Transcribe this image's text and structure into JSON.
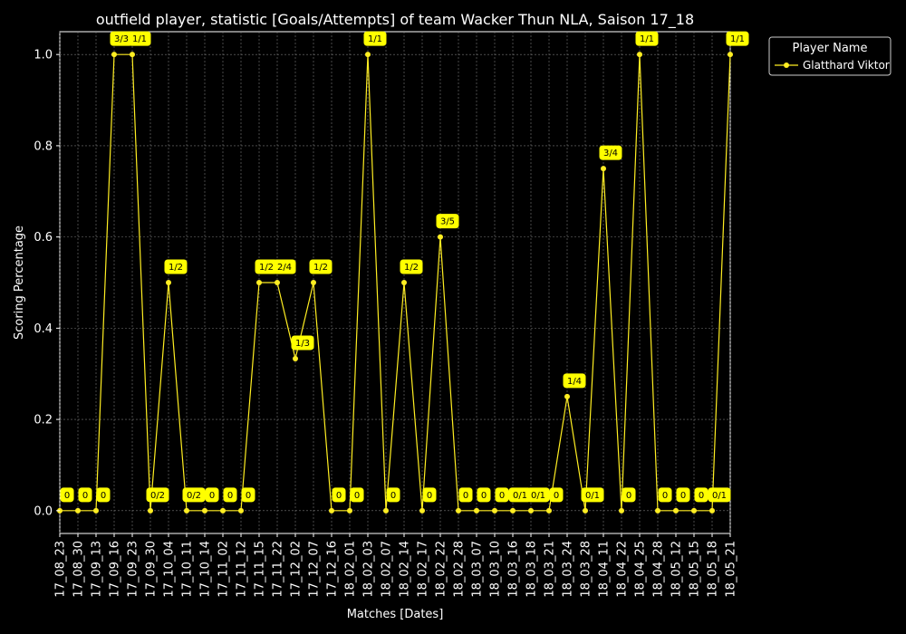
{
  "chart_data": {
    "type": "line",
    "title": "outfield player, statistic [Goals/Attempts] of team Wacker Thun NLA, Saison 17_18",
    "xlabel": "Matches [Dates]",
    "ylabel": "Scoring Percentage",
    "ylim": [
      -0.05,
      1.05
    ],
    "yticks": [
      "0.0",
      "0.2",
      "0.4",
      "0.6",
      "0.8",
      "1.0"
    ],
    "grid": true,
    "legend": {
      "title": "Player Name",
      "placement": "outside-top-right"
    },
    "categories": [
      "17_08_23",
      "17_08_30",
      "17_09_13",
      "17_09_16",
      "17_09_23",
      "17_09_30",
      "17_10_04",
      "17_10_11",
      "17_10_14",
      "17_11_02",
      "17_11_12",
      "17_11_15",
      "17_11_22",
      "17_12_02",
      "17_12_07",
      "17_12_16",
      "18_02_01",
      "18_02_03",
      "18_02_07",
      "18_02_14",
      "18_02_17",
      "18_02_22",
      "18_02_28",
      "18_03_07",
      "18_03_10",
      "18_03_16",
      "18_03_18",
      "18_03_21",
      "18_03_24",
      "18_03_28",
      "18_04_11",
      "18_04_22",
      "18_04_25",
      "18_04_28",
      "18_05_12",
      "18_05_15",
      "18_05_18",
      "18_05_21"
    ],
    "series": [
      {
        "name": "Glatthard Viktor",
        "color": "#FFEE22",
        "values": [
          0,
          0,
          0,
          1.0,
          1.0,
          0,
          0.5,
          0,
          0,
          0,
          0,
          0.5,
          0.5,
          0.3333,
          0.5,
          0,
          0,
          1.0,
          0,
          0.5,
          0,
          0.6,
          0,
          0,
          0,
          0,
          0,
          0,
          0.25,
          0,
          0.75,
          0,
          1.0,
          0,
          0,
          0,
          0,
          1.0
        ],
        "labels": [
          "0",
          "0",
          "0",
          "3/3",
          "1/1",
          "0/2",
          "1/2",
          "0/2",
          "0",
          "0",
          "0",
          "1/2",
          "2/4",
          "1/3",
          "1/2",
          "0",
          "0",
          "1/1",
          "0",
          "1/2",
          "0",
          "3/5",
          "0",
          "0",
          "0",
          "0/1",
          "0/1",
          "0",
          "1/4",
          "0/1",
          "3/4",
          "0",
          "1/1",
          "0",
          "0",
          "0",
          "0/1",
          "1/1"
        ]
      }
    ]
  }
}
